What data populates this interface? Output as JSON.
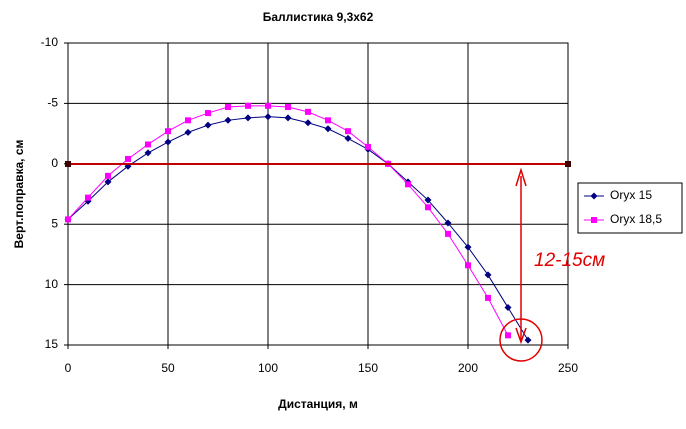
{
  "chart_data": {
    "type": "line",
    "title": "Баллистика 9,3x62",
    "x_label": "Дистанция, м",
    "y_label": "Верт.поправка, см",
    "x": [
      0,
      10,
      20,
      30,
      40,
      50,
      60,
      70,
      80,
      90,
      100,
      110,
      120,
      130,
      140,
      150,
      160,
      170,
      180,
      190,
      200,
      210,
      220,
      230
    ],
    "series": [
      {
        "name": "Oryx 15",
        "color": "#000080",
        "marker": "diamond",
        "values": [
          4.6,
          3.1,
          1.5,
          0.2,
          -0.9,
          -1.8,
          -2.6,
          -3.2,
          -3.6,
          -3.8,
          -3.9,
          -3.8,
          -3.4,
          -2.9,
          -2.1,
          -1.2,
          0,
          1.5,
          3.0,
          4.9,
          6.9,
          9.2,
          11.9,
          14.6
        ]
      },
      {
        "name": "Oryx 18,5",
        "color": "#ff00ff",
        "marker": "square",
        "values": [
          4.6,
          2.8,
          1.0,
          -0.4,
          -1.6,
          -2.7,
          -3.6,
          -4.2,
          -4.7,
          -4.8,
          -4.8,
          -4.7,
          -4.3,
          -3.6,
          -2.7,
          -1.4,
          0,
          1.7,
          3.6,
          5.8,
          8.4,
          11.1,
          14.2,
          null
        ]
      }
    ],
    "xlim": [
      0,
      250
    ],
    "xticks": [
      0,
      50,
      100,
      150,
      200,
      250
    ],
    "ylim": [
      -10,
      15
    ],
    "yticks": [
      -10,
      -5,
      0,
      5,
      10,
      15
    ],
    "y_inverted": true,
    "grid": true,
    "legend": "right",
    "annotation": "12-15см"
  }
}
